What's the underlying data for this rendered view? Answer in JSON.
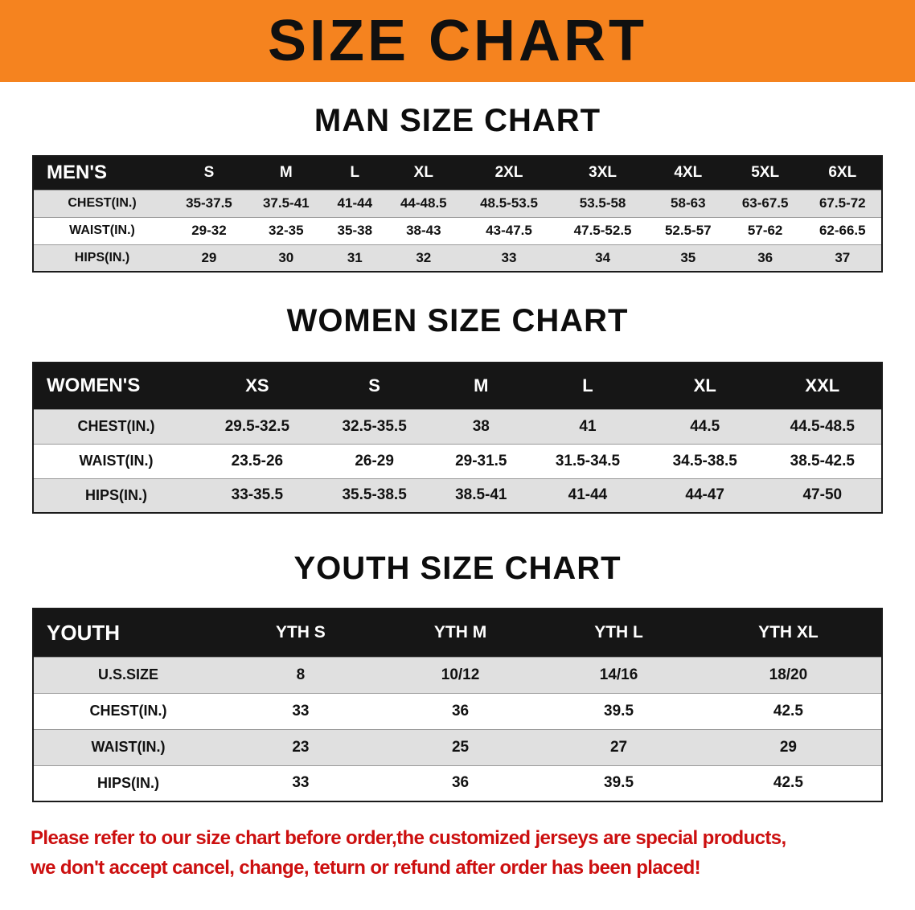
{
  "page": {
    "banner_title": "SIZE CHART",
    "disclaimer_line1": "Please refer to our size chart before order,the customized jerseys are special products,",
    "disclaimer_line2": "we don't accept cancel, change, teturn or refund after order has been placed!"
  },
  "colors": {
    "banner_bg": "#f5831f",
    "table_header_bg": "#161616",
    "row_alt_bg": "#e0e0e0",
    "disclaimer_red": "#cc0f0f"
  },
  "chart_data": [
    {
      "type": "table",
      "title": "MAN SIZE CHART",
      "corner_label": "MEN'S",
      "columns": [
        "S",
        "M",
        "L",
        "XL",
        "2XL",
        "3XL",
        "4XL",
        "5XL",
        "6XL"
      ],
      "rows": [
        {
          "label": "CHEST(IN.)",
          "values": [
            "35-37.5",
            "37.5-41",
            "41-44",
            "44-48.5",
            "48.5-53.5",
            "53.5-58",
            "58-63",
            "63-67.5",
            "67.5-72"
          ]
        },
        {
          "label": "WAIST(IN.)",
          "values": [
            "29-32",
            "32-35",
            "35-38",
            "38-43",
            "43-47.5",
            "47.5-52.5",
            "52.5-57",
            "57-62",
            "62-66.5"
          ]
        },
        {
          "label": "HIPS(IN.)",
          "values": [
            "29",
            "30",
            "31",
            "32",
            "33",
            "34",
            "35",
            "36",
            "37"
          ]
        }
      ]
    },
    {
      "type": "table",
      "title": "WOMEN SIZE CHART",
      "corner_label": "WOMEN'S",
      "columns": [
        "XS",
        "S",
        "M",
        "L",
        "XL",
        "XXL"
      ],
      "rows": [
        {
          "label": "CHEST(IN.)",
          "values": [
            "29.5-32.5",
            "32.5-35.5",
            "38",
            "41",
            "44.5",
            "44.5-48.5"
          ]
        },
        {
          "label": "WAIST(IN.)",
          "values": [
            "23.5-26",
            "26-29",
            "29-31.5",
            "31.5-34.5",
            "34.5-38.5",
            "38.5-42.5"
          ]
        },
        {
          "label": "HIPS(IN.)",
          "values": [
            "33-35.5",
            "35.5-38.5",
            "38.5-41",
            "41-44",
            "44-47",
            "47-50"
          ]
        }
      ]
    },
    {
      "type": "table",
      "title": "YOUTH SIZE CHART",
      "corner_label": "YOUTH",
      "columns": [
        "YTH S",
        "YTH M",
        "YTH L",
        "YTH XL"
      ],
      "rows": [
        {
          "label": "U.S.SIZE",
          "values": [
            "8",
            "10/12",
            "14/16",
            "18/20"
          ]
        },
        {
          "label": "CHEST(IN.)",
          "values": [
            "33",
            "36",
            "39.5",
            "42.5"
          ]
        },
        {
          "label": "WAIST(IN.)",
          "values": [
            "23",
            "25",
            "27",
            "29"
          ]
        },
        {
          "label": "HIPS(IN.)",
          "values": [
            "33",
            "36",
            "39.5",
            "42.5"
          ]
        }
      ]
    }
  ]
}
